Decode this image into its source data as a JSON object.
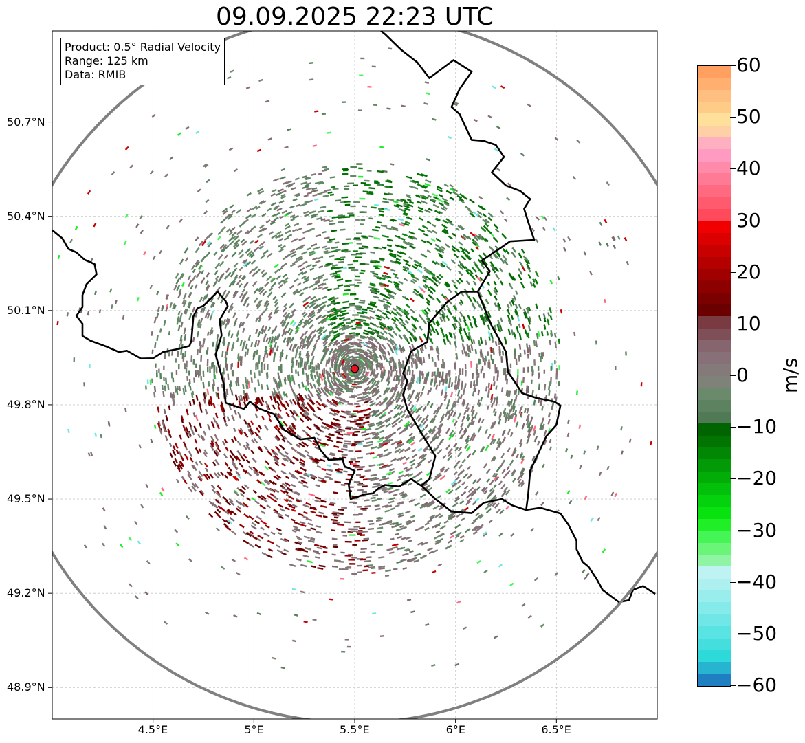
{
  "title": "09.09.2025 22:23 UTC",
  "info": {
    "product": "Product: 0.5° Radial Velocity",
    "range": "Range: 125 km",
    "data": "Data: RMIB"
  },
  "map_extent": {
    "lon_min": 4.0,
    "lon_max": 7.0,
    "lat_min": 48.8,
    "lat_max": 50.99
  },
  "radar_site": {
    "lon": 5.5,
    "lat": 49.915,
    "color": "#e8141a"
  },
  "range_ring_color": "#808080",
  "x_ticks": [
    {
      "lon": 4.5,
      "label": "4.5°E"
    },
    {
      "lon": 5.0,
      "label": "5°E"
    },
    {
      "lon": 5.5,
      "label": "5.5°E"
    },
    {
      "lon": 6.0,
      "label": "6°E"
    },
    {
      "lon": 6.5,
      "label": "6.5°E"
    }
  ],
  "y_ticks": [
    {
      "lat": 48.9,
      "label": "48.9°N"
    },
    {
      "lat": 49.2,
      "label": "49.2°N"
    },
    {
      "lat": 49.5,
      "label": "49.5°N"
    },
    {
      "lat": 49.8,
      "label": "49.8°N"
    },
    {
      "lat": 50.1,
      "label": "50.1°N"
    },
    {
      "lat": 50.4,
      "label": "50.4°N"
    },
    {
      "lat": 50.7,
      "label": "50.7°N"
    }
  ],
  "colorbar": {
    "unit": "m/s",
    "min": -60,
    "max": 60,
    "ticks": [
      {
        "value": 60,
        "label": "60"
      },
      {
        "value": 50,
        "label": "50"
      },
      {
        "value": 40,
        "label": "40"
      },
      {
        "value": 30,
        "label": "30"
      },
      {
        "value": 20,
        "label": "20"
      },
      {
        "value": 10,
        "label": "10"
      },
      {
        "value": 0,
        "label": "0"
      },
      {
        "value": -10,
        "label": "−10"
      },
      {
        "value": -20,
        "label": "−20"
      },
      {
        "value": -30,
        "label": "−30"
      },
      {
        "value": -40,
        "label": "−40"
      },
      {
        "value": -50,
        "label": "−50"
      },
      {
        "value": -60,
        "label": "−60"
      }
    ],
    "colors": [
      "#1f7fc0",
      "#26b4d0",
      "#2ed9d9",
      "#44dede",
      "#5ae3e3",
      "#70e6e6",
      "#85eaea",
      "#9aeded",
      "#aef0f0",
      "#bff2f2",
      "#8ff5a5",
      "#6af578",
      "#44f555",
      "#20ef28",
      "#08e310",
      "#04d20c",
      "#03c00a",
      "#02ad08",
      "#029a06",
      "#018704",
      "#017402",
      "#006400",
      "#4f7a55",
      "#5d825f",
      "#6b8a6b",
      "#7f8278",
      "#857a7a",
      "#877078",
      "#87656f",
      "#7f4f58",
      "#7a3a42",
      "#6b0000",
      "#7b0000",
      "#8c0000",
      "#a00000",
      "#b50000",
      "#c80000",
      "#dc0000",
      "#f00000",
      "#ff4a5c",
      "#ff5a6e",
      "#ff6a80",
      "#ff7a95",
      "#ff8aaa",
      "#ff9ac0",
      "#ffb0c0",
      "#ffd0a5",
      "#ffe09a",
      "#ffcc88",
      "#ffbf80",
      "#ffb070",
      "#ffa060"
    ]
  },
  "borders": [
    [
      [
        4.0,
        50.356
      ],
      [
        4.05,
        50.33
      ],
      [
        4.08,
        50.296
      ],
      [
        4.12,
        50.285
      ],
      [
        4.16,
        50.262
      ],
      [
        4.21,
        50.248
      ],
      [
        4.22,
        50.215
      ],
      [
        4.17,
        50.184
      ],
      [
        4.15,
        50.149
      ],
      [
        4.15,
        50.111
      ],
      [
        4.12,
        50.083
      ],
      [
        4.15,
        50.058
      ],
      [
        4.15,
        50.019
      ],
      [
        4.19,
        50.004
      ],
      [
        4.27,
        49.985
      ],
      [
        4.33,
        49.968
      ],
      [
        4.37,
        49.972
      ],
      [
        4.44,
        49.947
      ],
      [
        4.5,
        49.948
      ],
      [
        4.55,
        49.968
      ],
      [
        4.62,
        49.977
      ],
      [
        4.68,
        49.987
      ],
      [
        4.69,
        50.003
      ],
      [
        4.7,
        50.081
      ],
      [
        4.72,
        50.107
      ],
      [
        4.75,
        50.115
      ],
      [
        4.82,
        50.16
      ],
      [
        4.86,
        50.13
      ],
      [
        4.87,
        50.114
      ],
      [
        4.83,
        50.07
      ],
      [
        4.84,
        50.021
      ],
      [
        4.81,
        49.96
      ],
      [
        4.85,
        49.868
      ],
      [
        4.86,
        49.806
      ],
      [
        4.95,
        49.787
      ],
      [
        4.98,
        49.81
      ],
      [
        5.03,
        49.787
      ],
      [
        5.1,
        49.77
      ],
      [
        5.15,
        49.72
      ],
      [
        5.23,
        49.69
      ],
      [
        5.3,
        49.695
      ],
      [
        5.33,
        49.657
      ],
      [
        5.37,
        49.625
      ],
      [
        5.44,
        49.627
      ],
      [
        5.45,
        49.604
      ],
      [
        5.5,
        49.59
      ],
      [
        5.47,
        49.547
      ],
      [
        5.48,
        49.5
      ],
      [
        5.55,
        49.515
      ],
      [
        5.59,
        49.518
      ],
      [
        5.62,
        49.535
      ],
      [
        5.65,
        49.545
      ],
      [
        5.72,
        49.54
      ],
      [
        5.78,
        49.564
      ],
      [
        5.82,
        49.546
      ],
      [
        5.83,
        49.543
      ]
    ],
    [
      [
        5.83,
        49.543
      ],
      [
        5.9,
        49.5
      ],
      [
        5.98,
        49.46
      ],
      [
        6.08,
        49.455
      ],
      [
        6.14,
        49.488
      ],
      [
        6.23,
        49.5
      ],
      [
        6.28,
        49.48
      ],
      [
        6.35,
        49.465
      ],
      [
        6.42,
        49.472
      ],
      [
        6.52,
        49.454
      ],
      [
        6.56,
        49.418
      ],
      [
        6.6,
        49.367
      ],
      [
        6.6,
        49.34
      ],
      [
        6.63,
        49.3
      ],
      [
        6.66,
        49.284
      ],
      [
        6.7,
        49.245
      ],
      [
        6.73,
        49.21
      ],
      [
        6.81,
        49.172
      ],
      [
        6.86,
        49.178
      ],
      [
        6.88,
        49.211
      ],
      [
        6.93,
        49.223
      ],
      [
        6.99,
        49.198
      ]
    ],
    [
      [
        5.83,
        49.543
      ],
      [
        5.87,
        49.563
      ],
      [
        5.9,
        49.637
      ],
      [
        5.84,
        49.7
      ],
      [
        5.76,
        49.786
      ],
      [
        5.74,
        49.833
      ],
      [
        5.76,
        49.876
      ],
      [
        5.74,
        49.9
      ],
      [
        5.78,
        49.97
      ],
      [
        5.86,
        50.0
      ],
      [
        5.87,
        50.06
      ],
      [
        5.96,
        50.128
      ],
      [
        6.03,
        50.16
      ],
      [
        6.11,
        50.16
      ],
      [
        6.13,
        50.128
      ],
      [
        6.18,
        50.05
      ],
      [
        6.21,
        50.016
      ],
      [
        6.25,
        49.968
      ],
      [
        6.26,
        49.905
      ],
      [
        6.33,
        49.837
      ],
      [
        6.4,
        49.822
      ],
      [
        6.49,
        49.81
      ],
      [
        6.52,
        49.798
      ],
      [
        6.5,
        49.736
      ],
      [
        6.45,
        49.7
      ],
      [
        6.37,
        49.59
      ],
      [
        6.36,
        49.514
      ],
      [
        6.35,
        49.465
      ]
    ],
    [
      [
        6.11,
        50.16
      ],
      [
        6.17,
        50.225
      ],
      [
        6.13,
        50.259
      ],
      [
        6.23,
        50.302
      ],
      [
        6.27,
        50.32
      ],
      [
        6.39,
        50.325
      ],
      [
        6.36,
        50.382
      ],
      [
        6.34,
        50.424
      ],
      [
        6.37,
        50.455
      ],
      [
        6.32,
        50.481
      ],
      [
        6.25,
        50.498
      ],
      [
        6.18,
        50.54
      ],
      [
        6.24,
        50.589
      ],
      [
        6.2,
        50.627
      ],
      [
        6.14,
        50.64
      ],
      [
        6.08,
        50.643
      ],
      [
        6.02,
        50.725
      ],
      [
        5.98,
        50.748
      ],
      [
        6.02,
        50.805
      ],
      [
        6.08,
        50.86
      ],
      [
        5.99,
        50.897
      ],
      [
        5.87,
        50.84
      ],
      [
        5.81,
        50.89
      ],
      [
        5.73,
        50.93
      ],
      [
        5.65,
        50.98
      ],
      [
        5.63,
        50.99
      ]
    ]
  ]
}
